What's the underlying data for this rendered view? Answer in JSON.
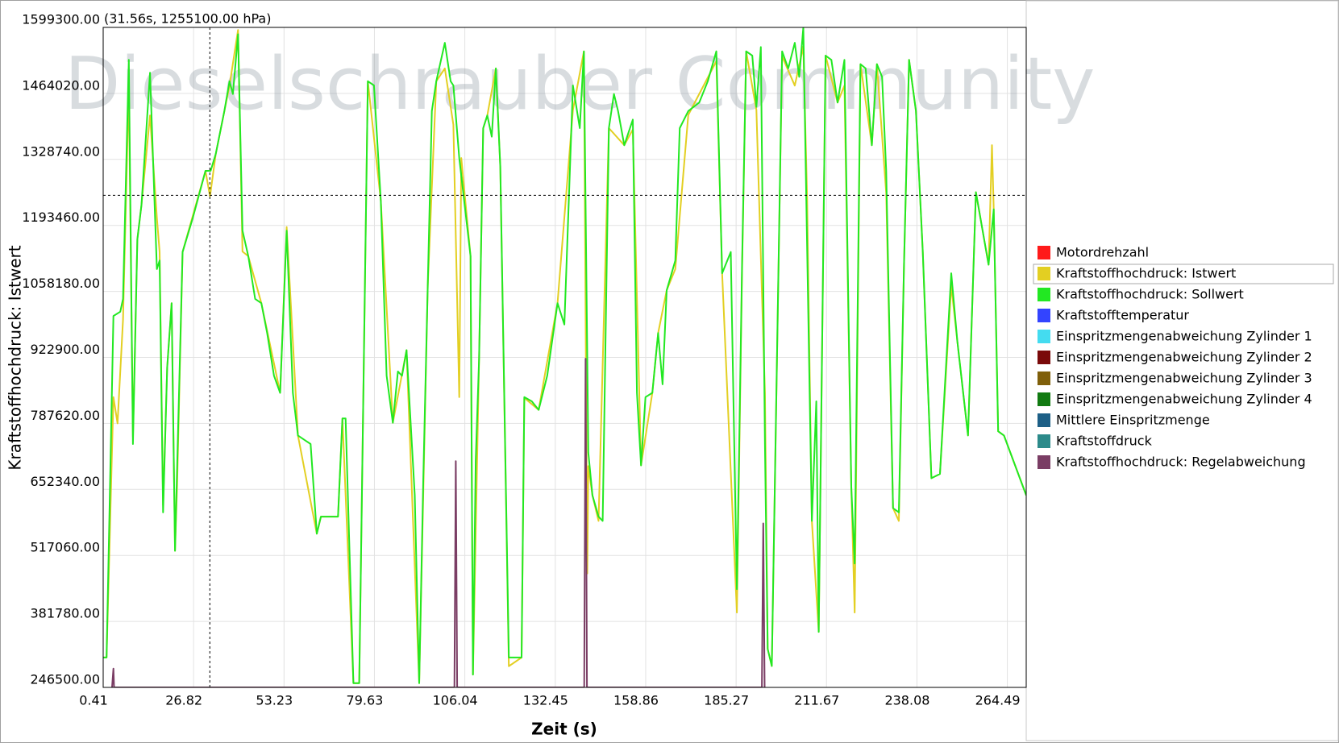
{
  "chart_data": {
    "type": "line",
    "watermark": "Dieselschrauber Community",
    "x_label": "Zeit (s)",
    "y_label": "Kraftstoffhochdruck: Istwert",
    "crosshair": {
      "x": 31.56,
      "y": 1255100,
      "label": "(31.56s, 1255100.00 hPa)"
    },
    "xlim": [
      0.41,
      270
    ],
    "xticks": [
      0.41,
      26.82,
      53.23,
      79.63,
      106.04,
      132.45,
      158.86,
      185.27,
      211.67,
      238.08,
      264.49
    ],
    "ylim": [
      246500,
      1599300
    ],
    "yticks": [
      {
        "value": 246500,
        "label": "246500.00"
      },
      {
        "value": 381780,
        "label": "381780.00"
      },
      {
        "value": 517060,
        "label": "517060.00"
      },
      {
        "value": 652340,
        "label": "652340.00"
      },
      {
        "value": 787620,
        "label": "787620.00"
      },
      {
        "value": 922900,
        "label": "922900.00"
      },
      {
        "value": 1058180,
        "label": "1058180.00"
      },
      {
        "value": 1193460,
        "label": "1193460.00"
      },
      {
        "value": 1328740,
        "label": "1328740.00"
      },
      {
        "value": 1464020,
        "label": "1464020.00"
      },
      {
        "value": 1599300,
        "label": "1599300.00"
      }
    ],
    "grid": true,
    "legend_selected": 1,
    "series": [
      {
        "name": "Motordrehzahl",
        "color": "#ff1a1a",
        "x": [],
        "values": []
      },
      {
        "name": "Kraftstoffhochdruck: Istwert",
        "color": "#e3cf22",
        "x": [
          0.4,
          1.4,
          3.4,
          4.6,
          6.2,
          7.9,
          9.1,
          10.4,
          11.6,
          14.1,
          16.1,
          16.9,
          17.9,
          19.1,
          20.4,
          21.4,
          22.0,
          23.6,
          30.3,
          31.6,
          33.3,
          37.3,
          39.8,
          41.1,
          42.8,
          46.6,
          52.1,
          54.0,
          57.3,
          62.8,
          64.0,
          69.0,
          70.3,
          73.5,
          75.2,
          77.7,
          81.5,
          85.0,
          89.0,
          92.7,
          95.2,
          97.7,
          100.2,
          102.7,
          104.4,
          105.0,
          107.7,
          108.4,
          110.2,
          111.4,
          112.6,
          115.1,
          116.4,
          118.9,
          122.6,
          123.4,
          127.6,
          133.1,
          137.6,
          140.8,
          141.8,
          142.1,
          143.3,
          145.1,
          148.1,
          152.6,
          155.1,
          157.5,
          160.8,
          162.5,
          165.0,
          167.5,
          171.3,
          179.5,
          181.2,
          185.5,
          187.0,
          188.2,
          191.2,
          193.7,
          194.5,
          195.7,
          198.7,
          202.4,
          204.9,
          206.0,
          207.4,
          209.4,
          211.4,
          214.9,
          216.9,
          218.9,
          219.9,
          221.6,
          224.9,
          226.4,
          229.1,
          231.1,
          232.8,
          234.3,
          235.8,
          237.8,
          239.8,
          242.3,
          244.8,
          248.1,
          249.9,
          253.0,
          255.3,
          259.0,
          260.0,
          260.5,
          261.8,
          263.5,
          270.0
        ],
        "values": [
          307800,
          307800,
          841500,
          787600,
          1000000,
          1480000,
          760000,
          1165300,
          1235300,
          1419000,
          1209000,
          1139000,
          620000,
          902800,
          1034000,
          526500,
          660000,
          1139000,
          1305300,
          1253000,
          1340300,
          1480000,
          1594000,
          1140000,
          1130300,
          1034000,
          850300,
          1190000,
          762800,
          561500,
          596500,
          596500,
          797800,
          255300,
          255300,
          1489000,
          1244000,
          789000,
          937800,
          255300,
          1069000,
          1489000,
          1515300,
          1400000,
          841500,
          1331500,
          1130300,
          272800,
          920300,
          1392800,
          1419000,
          1515300,
          1314000,
          290000,
          307800,
          840000,
          815300,
          1034000,
          1430000,
          1550300,
          480000,
          700000,
          640300,
          587800,
          1392800,
          1357800,
          1390000,
          701500,
          850300,
          972800,
          1060300,
          1104000,
          1420000,
          1530000,
          1095300,
          400000,
          1100000,
          1550300,
          1430000,
          850000,
          325300,
          290300,
          1540000,
          1480000,
          1560000,
          1250000,
          587800,
          360300,
          1541500,
          1445300,
          1480000,
          657800,
          400000,
          1524000,
          1357800,
          1524000,
          1260000,
          614000,
          587800,
          1112800,
          1532800,
          1427800,
          1139000,
          675300,
          684000,
          1070000,
          955300,
          762800,
          1261500,
          1112800,
          1358000,
          1226500,
          771500,
          762800,
          640300
        ]
      },
      {
        "name": "Kraftstoffhochdruck: Sollwert",
        "color": "#22e822",
        "x": [
          0.4,
          1.4,
          3.4,
          5.4,
          6.2,
          7.9,
          9.1,
          10.4,
          11.6,
          14.1,
          16.1,
          16.9,
          17.9,
          19.1,
          20.4,
          21.4,
          23.6,
          26.6,
          30.3,
          31.8,
          33.3,
          35.8,
          37.3,
          38.3,
          39.8,
          41.1,
          42.8,
          44.8,
          46.6,
          48.3,
          50.3,
          52.1,
          54.0,
          55.8,
          57.3,
          61.0,
          62.8,
          64.0,
          69.0,
          70.3,
          71.2,
          73.5,
          75.2,
          77.7,
          79.5,
          81.5,
          83.2,
          85.0,
          86.5,
          87.7,
          89.0,
          91.4,
          92.7,
          93.9,
          95.2,
          96.4,
          97.7,
          100.2,
          101.9,
          102.7,
          104.4,
          107.7,
          108.4,
          109.2,
          110.2,
          111.4,
          112.6,
          113.9,
          115.1,
          116.4,
          118.9,
          122.6,
          123.4,
          125.6,
          127.6,
          130.1,
          133.1,
          135.1,
          137.6,
          139.6,
          140.8,
          142.1,
          143.3,
          145.1,
          146.3,
          148.1,
          149.6,
          150.8,
          152.6,
          155.1,
          156.3,
          157.5,
          158.8,
          160.8,
          162.5,
          163.8,
          165.0,
          167.5,
          168.8,
          171.3,
          174.5,
          177.0,
          179.5,
          181.2,
          183.7,
          185.5,
          187.0,
          188.2,
          190.0,
          191.2,
          192.5,
          193.7,
          194.5,
          195.7,
          198.7,
          200.5,
          202.4,
          203.7,
          204.9,
          207.4,
          208.7,
          209.4,
          211.4,
          213.1,
          214.9,
          216.9,
          218.9,
          219.9,
          221.6,
          223.1,
          224.9,
          226.4,
          227.9,
          229.1,
          231.1,
          232.8,
          234.3,
          235.8,
          237.8,
          239.8,
          242.3,
          244.8,
          248.1,
          249.9,
          253.0,
          255.3,
          259.0,
          260.5,
          261.8,
          263.5,
          270.0
        ],
        "values": [
          307800,
          307800,
          1007800,
          1016500,
          1042800,
          1532800,
          745300,
          1165300,
          1235300,
          1506500,
          1104000,
          1121500,
          605300,
          902800,
          1034000,
          526500,
          1139000,
          1209000,
          1305300,
          1305300,
          1340300,
          1427800,
          1489000,
          1462800,
          1585300,
          1182800,
          1130300,
          1042800,
          1034000,
          972800,
          885300,
          850300,
          1182800,
          850300,
          762800,
          745300,
          561500,
          596500,
          596500,
          797800,
          797800,
          255300,
          255300,
          1489000,
          1480300,
          1244000,
          885300,
          789000,
          894000,
          885300,
          937800,
          640300,
          255300,
          675300,
          1069000,
          1427800,
          1489000,
          1567800,
          1489000,
          1480300,
          1331500,
          1130300,
          272800,
          710300,
          920300,
          1392800,
          1419000,
          1375300,
          1515300,
          1314000,
          307800,
          307800,
          841500,
          832800,
          815300,
          885300,
          1034000,
          990300,
          1480300,
          1392800,
          1550300,
          727800,
          640300,
          596500,
          587800,
          1392800,
          1462800,
          1427800,
          1357800,
          1410300,
          850300,
          701500,
          841500,
          850300,
          972800,
          867800,
          1060300,
          1121500,
          1392800,
          1427800,
          1445300,
          1489000,
          1550300,
          1095300,
          1139000,
          447800,
          1112800,
          1550300,
          1541500,
          1436500,
          1559000,
          745300,
          325300,
          290300,
          1550300,
          1515300,
          1567800,
          1497800,
          1599300,
          587800,
          832800,
          360300,
          1541500,
          1532800,
          1445300,
          1532800,
          657800,
          500300,
          1524000,
          1515300,
          1357800,
          1524000,
          1497800,
          1305300,
          614000,
          605300,
          1112800,
          1532800,
          1427800,
          1139000,
          675300,
          684000,
          1095300,
          955300,
          762800,
          1261500,
          1112800,
          1226500,
          771500,
          762800,
          640300
        ]
      },
      {
        "name": "Kraftstofftemperatur",
        "color": "#3344ff",
        "x": [],
        "values": []
      },
      {
        "name": "Einspritzmengenabweichung Zylinder 1",
        "color": "#44dcf0",
        "x": [],
        "values": []
      },
      {
        "name": "Einspritzmengenabweichung Zylinder 2",
        "color": "#7a0a0a",
        "x": [],
        "values": []
      },
      {
        "name": "Einspritzmengenabweichung Zylinder 3",
        "color": "#7f5f0a",
        "x": [],
        "values": []
      },
      {
        "name": "Einspritzmengenabweichung Zylinder 4",
        "color": "#117a11",
        "x": [],
        "values": []
      },
      {
        "name": "Mittlere Einspritzmenge",
        "color": "#1d5f86",
        "x": [],
        "values": []
      },
      {
        "name": "Kraftstoffdruck",
        "color": "#2c8a8a",
        "x": [],
        "values": []
      },
      {
        "name": "Kraftstoffhochdruck: Regelabweichung",
        "color": "#7a3d64",
        "x": [
          3.0,
          3.4,
          3.6,
          103.0,
          103.4,
          103.8,
          140.9,
          141.3,
          141.7,
          192.8,
          193.2,
          193.6
        ],
        "values": [
          246500,
          285000,
          246500,
          246500,
          710300,
          246500,
          246500,
          920300,
          246500,
          246500,
          582600,
          246500
        ]
      }
    ]
  }
}
